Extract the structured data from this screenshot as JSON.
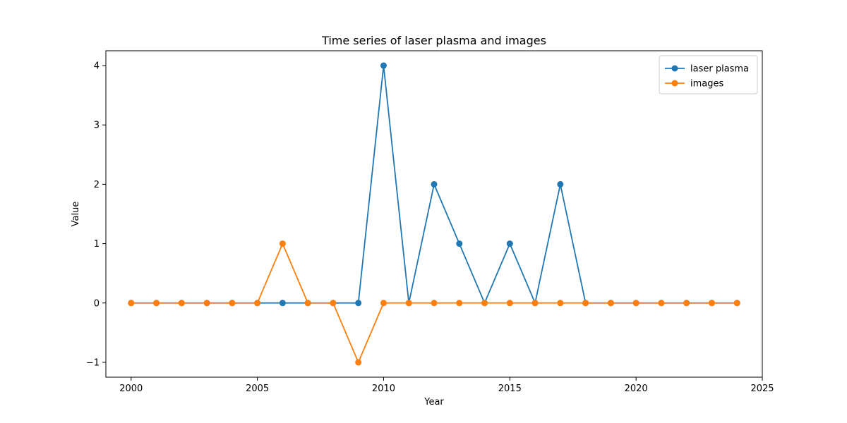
{
  "chart_data": {
    "type": "line",
    "title": "Time series of laser plasma and images",
    "xlabel": "Year",
    "ylabel": "Value",
    "xlim": [
      1999,
      2025
    ],
    "ylim": [
      -1.25,
      4.25
    ],
    "xticks": [
      2000,
      2005,
      2010,
      2015,
      2020,
      2025
    ],
    "yticks": [
      -1,
      0,
      1,
      2,
      3,
      4
    ],
    "ytick_labels": [
      "−1",
      "0",
      "1",
      "2",
      "3",
      "4"
    ],
    "legend_position": "top-right",
    "grid": false,
    "x": [
      2000,
      2001,
      2002,
      2003,
      2004,
      2005,
      2006,
      2007,
      2008,
      2009,
      2010,
      2011,
      2012,
      2013,
      2014,
      2015,
      2016,
      2017,
      2018,
      2019,
      2020,
      2021,
      2022,
      2023,
      2024
    ],
    "series": [
      {
        "name": "laser plasma",
        "color": "#1f77b4",
        "values": [
          0,
          0,
          0,
          0,
          0,
          0,
          0,
          0,
          0,
          0,
          4,
          0,
          2,
          1,
          0,
          1,
          0,
          2,
          0,
          0,
          0,
          0,
          0,
          0,
          0
        ]
      },
      {
        "name": "images",
        "color": "#ff7f0e",
        "values": [
          0,
          0,
          0,
          0,
          0,
          0,
          1,
          0,
          0,
          -1,
          0,
          0,
          0,
          0,
          0,
          0,
          0,
          0,
          0,
          0,
          0,
          0,
          0,
          0,
          0
        ]
      }
    ]
  }
}
